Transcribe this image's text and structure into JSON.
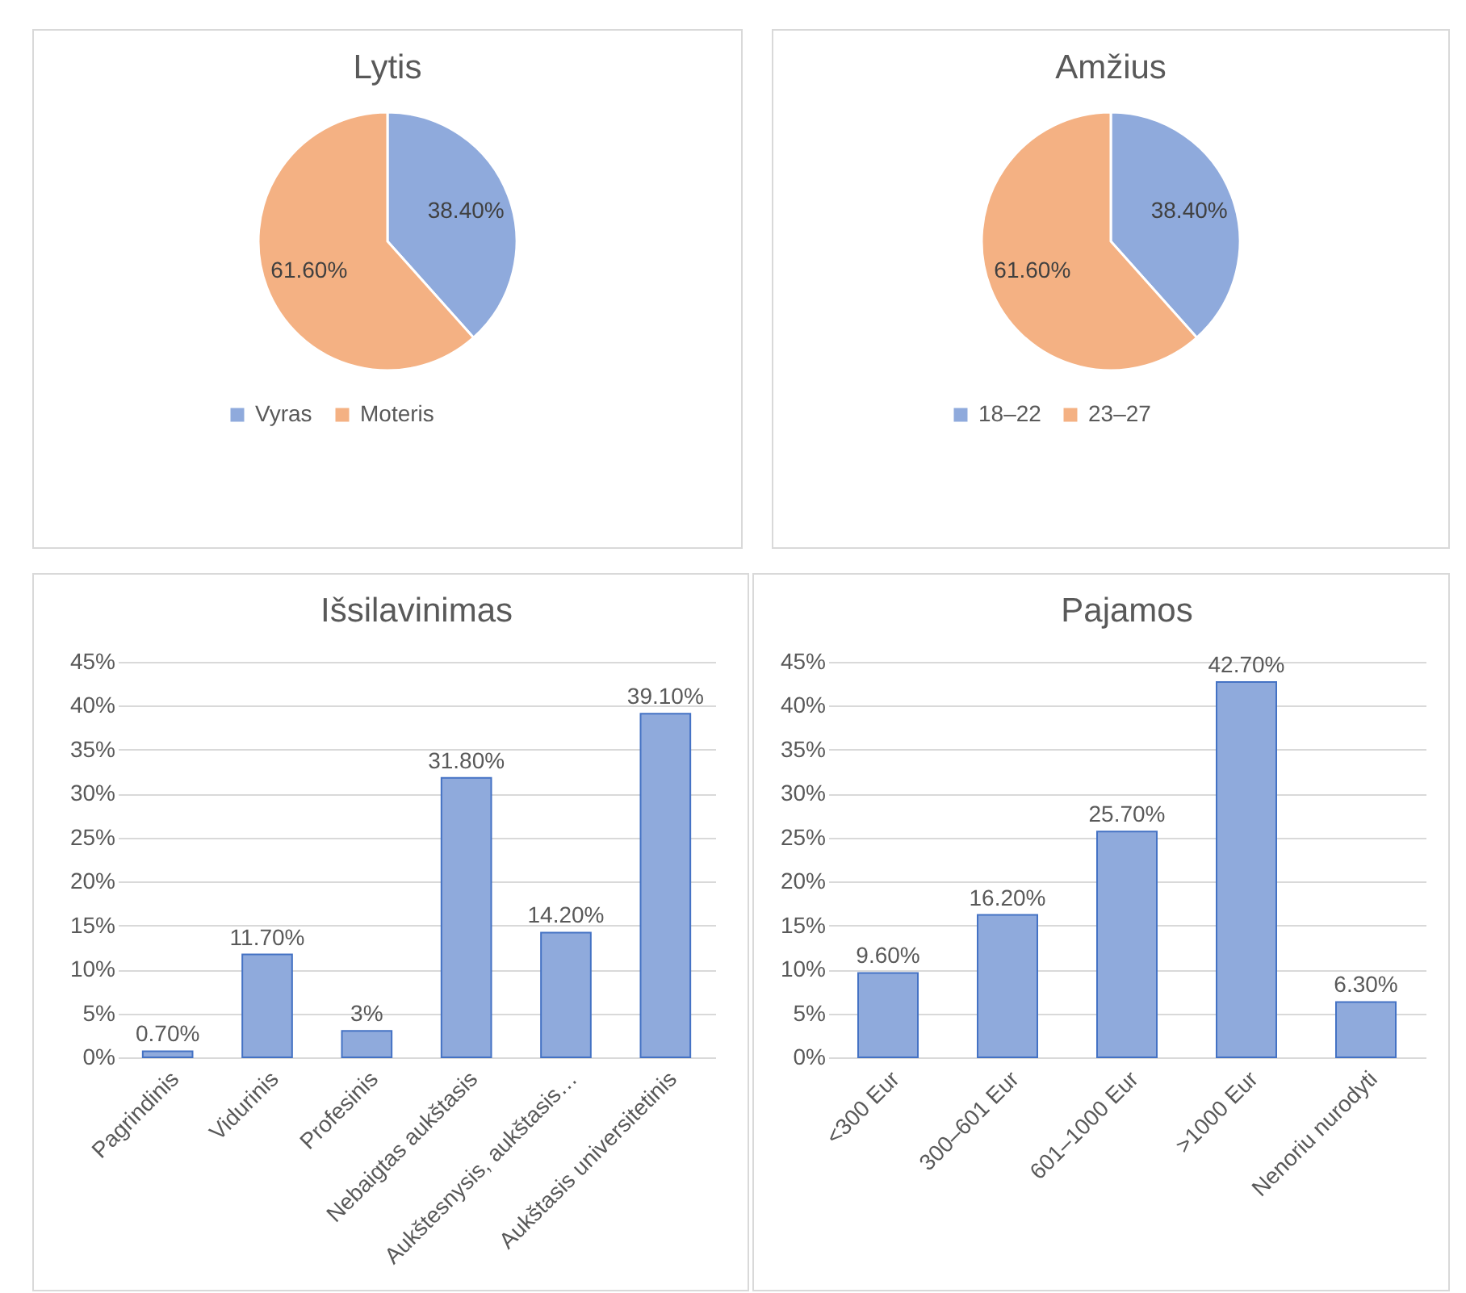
{
  "chart_data": [
    {
      "type": "pie",
      "title": "Lytis",
      "categories": [
        "Vyras",
        "Moteris"
      ],
      "values": [
        38.4,
        61.6
      ],
      "colors": [
        "#8faadc",
        "#f4b183"
      ],
      "value_labels": [
        "38.40%",
        "61.60%"
      ],
      "legend": "bottom"
    },
    {
      "type": "pie",
      "title": "Amžius",
      "categories": [
        "18–22",
        "23–27"
      ],
      "values": [
        38.4,
        61.6
      ],
      "colors": [
        "#8faadc",
        "#f4b183"
      ],
      "value_labels": [
        "38.40%",
        "61.60%"
      ],
      "legend": "bottom"
    },
    {
      "type": "bar",
      "title": "Išsilavinimas",
      "categories": [
        "Pagrindinis",
        "Vidurinis",
        "Profesinis",
        "Nebaigtas aukštasis",
        "Aukštesnysis, aukštasis…",
        "Aukštasis universitetinis"
      ],
      "values": [
        0.7,
        11.7,
        3,
        31.8,
        14.2,
        39.1
      ],
      "color": "#8faadc",
      "value_labels": [
        "0.70%",
        "11.70%",
        "3%",
        "31.80%",
        "14.20%",
        "39.10%"
      ],
      "ylim": [
        0,
        45
      ],
      "yticks": [
        {
          "value": 0,
          "label": "0%"
        },
        {
          "value": 5,
          "label": "5%"
        },
        {
          "value": 10,
          "label": "10%"
        },
        {
          "value": 15,
          "label": "15%"
        },
        {
          "value": 20,
          "label": "20%"
        },
        {
          "value": 25,
          "label": "25%"
        },
        {
          "value": 30,
          "label": "30%"
        },
        {
          "value": 35,
          "label": "35%"
        },
        {
          "value": 40,
          "label": "40%"
        },
        {
          "value": 45,
          "label": "45%"
        }
      ],
      "grid": "y"
    },
    {
      "type": "bar",
      "title": "Pajamos",
      "categories": [
        "<300 Eur",
        "300–601 Eur",
        "601–1000 Eur",
        ">1000 Eur",
        "Nenoriu nurodyti"
      ],
      "values": [
        9.6,
        16.2,
        25.7,
        42.7,
        6.3
      ],
      "color": "#8faadc",
      "value_labels": [
        "9.60%",
        "16.20%",
        "25.70%",
        "42.70%",
        "6.30%"
      ],
      "ylim": [
        0,
        45
      ],
      "yticks": [
        {
          "value": 0,
          "label": "0%"
        },
        {
          "value": 5,
          "label": "5%"
        },
        {
          "value": 10,
          "label": "10%"
        },
        {
          "value": 15,
          "label": "15%"
        },
        {
          "value": 20,
          "label": "20%"
        },
        {
          "value": 25,
          "label": "25%"
        },
        {
          "value": 30,
          "label": "30%"
        },
        {
          "value": 35,
          "label": "35%"
        },
        {
          "value": 40,
          "label": "40%"
        },
        {
          "value": 45,
          "label": "45%"
        }
      ],
      "grid": "y"
    }
  ]
}
